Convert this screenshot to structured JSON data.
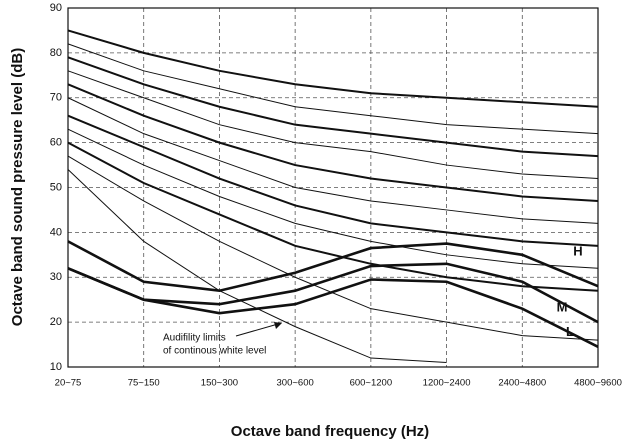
{
  "chart_data": {
    "type": "line",
    "x_label": "Octave band frequency (Hz)",
    "y_label": "Octave band sound pressure level (dB)",
    "categories": [
      "20~75",
      "75~150",
      "150~300",
      "300~600",
      "600~1200",
      "1200~2400",
      "2400~4800",
      "4800~9600"
    ],
    "ylim": [
      10,
      90
    ],
    "yticks": [
      10,
      20,
      30,
      40,
      50,
      60,
      70,
      80,
      90
    ],
    "grid": true,
    "annotation": [
      "Audifility limits",
      "of continous white level"
    ],
    "series": [
      {
        "color": "#111",
        "linewidth": 2,
        "values": [
          85,
          80,
          76,
          73,
          71,
          70,
          69,
          68
        ]
      },
      {
        "color": "#111",
        "linewidth": 1,
        "values": [
          82,
          76,
          72,
          68,
          66,
          64,
          63,
          62
        ]
      },
      {
        "color": "#111",
        "linewidth": 2,
        "values": [
          79,
          73,
          68,
          64,
          62,
          60,
          58,
          57
        ]
      },
      {
        "color": "#111",
        "linewidth": 1,
        "values": [
          76,
          70,
          64,
          60,
          58,
          55,
          53,
          52
        ]
      },
      {
        "color": "#111",
        "linewidth": 2,
        "values": [
          73,
          66,
          60,
          55,
          52,
          50,
          48,
          47
        ]
      },
      {
        "color": "#111",
        "linewidth": 1,
        "values": [
          70,
          62,
          56,
          50,
          47,
          45,
          43,
          42
        ]
      },
      {
        "color": "#111",
        "linewidth": 2,
        "values": [
          66,
          59,
          52,
          46,
          42,
          40,
          38,
          37
        ]
      },
      {
        "color": "#111",
        "linewidth": 1,
        "values": [
          63,
          55,
          48,
          42,
          38,
          35,
          33,
          32
        ]
      },
      {
        "color": "#111",
        "linewidth": 2,
        "values": [
          60,
          51,
          44,
          37,
          33,
          30,
          28,
          27
        ]
      },
      {
        "color": "#111",
        "linewidth": 1,
        "values": [
          57,
          47,
          38,
          30,
          23,
          20,
          17,
          16
        ]
      },
      {
        "color": "#111",
        "linewidth": 1,
        "values": [
          54,
          38,
          27,
          19,
          12,
          11,
          null,
          null
        ]
      },
      {
        "name": "H",
        "color": "#111",
        "linewidth": 2.6,
        "values": [
          38,
          29,
          27,
          31,
          36.5,
          37.5,
          35,
          28
        ]
      },
      {
        "name": "M",
        "color": "#111",
        "linewidth": 2.6,
        "values": [
          32,
          25,
          24,
          27,
          32.5,
          33,
          29,
          20
        ]
      },
      {
        "name": "L",
        "color": "#111",
        "linewidth": 2.6,
        "values": [
          32,
          25,
          22,
          24,
          29.5,
          29,
          23,
          14.5
        ]
      }
    ]
  }
}
